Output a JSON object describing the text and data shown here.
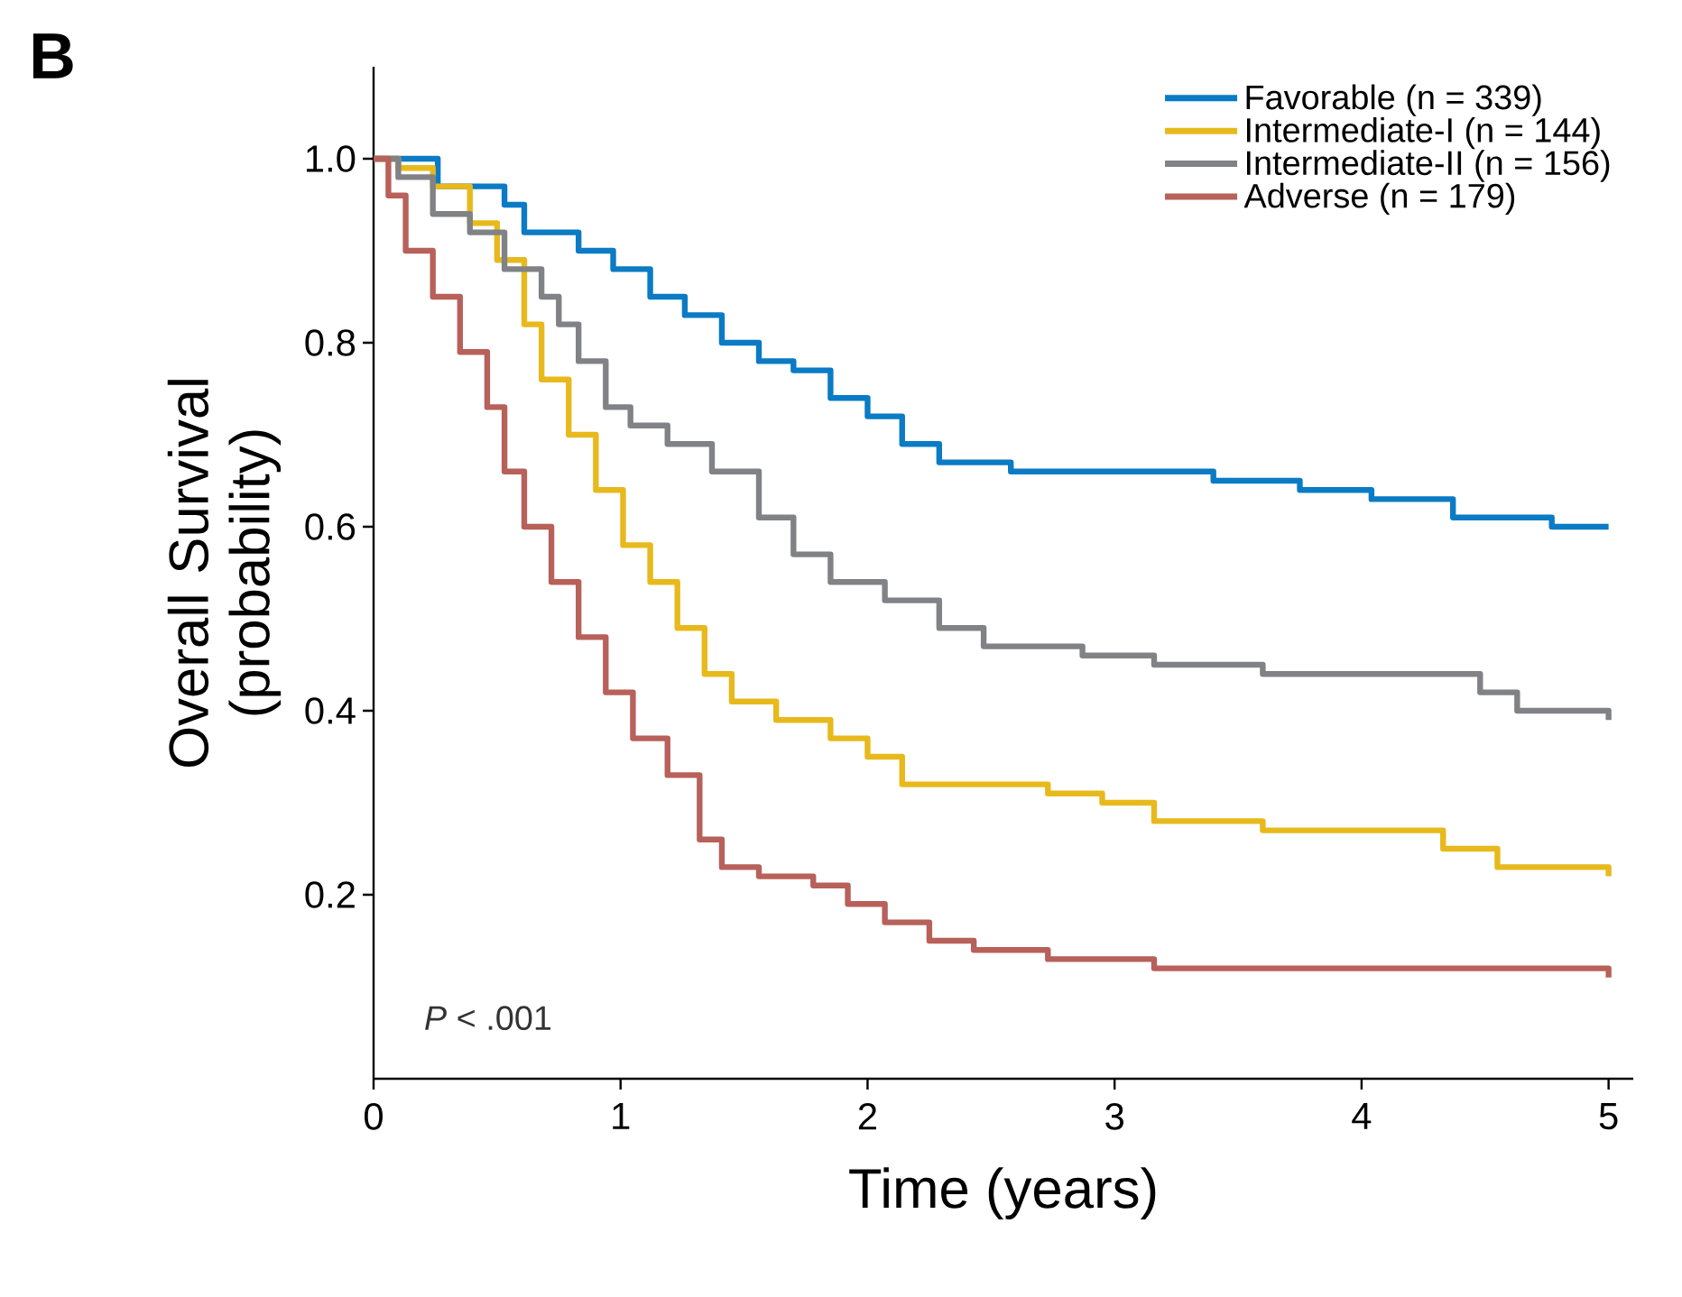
{
  "chart_data": {
    "type": "step",
    "title": "B",
    "xlabel": "Time (years)",
    "ylabel": "Overall Survival (probability)",
    "annotations": [
      "*P* < .001"
    ],
    "xlim": [
      0,
      5.1
    ],
    "ylim": [
      0,
      1.1
    ],
    "xticks": [
      0,
      1,
      2,
      3,
      4,
      5
    ],
    "yticks": [
      {
        "value": 0.2,
        "label": "0.2"
      },
      {
        "value": 0.4,
        "label": "0.4"
      },
      {
        "value": 0.6,
        "label": "0.6"
      },
      {
        "value": 0.8,
        "label": "0.8"
      },
      {
        "value": 1,
        "label": "1.0"
      }
    ],
    "legend": "top right",
    "grid": false,
    "marker": "none",
    "line_style": "solid",
    "series": [
      {
        "name": "Favorable (n = 339)",
        "color": "#0a7bc4",
        "x": [
          0,
          0.13,
          0.26,
          0.53,
          0.61,
          0.83,
          0.97,
          1.12,
          1.26,
          1.41,
          1.56,
          1.7,
          1.85,
          2.0,
          2.14,
          2.29,
          2.43,
          2.58,
          2.73,
          3.35,
          3.4,
          3.75,
          4.04,
          4.37,
          4.77,
          5.0
        ],
        "values": [
          1.0,
          1.0,
          0.97,
          0.95,
          0.92,
          0.9,
          0.88,
          0.85,
          0.83,
          0.8,
          0.78,
          0.77,
          0.74,
          0.72,
          0.69,
          0.67,
          0.67,
          0.66,
          0.66,
          0.66,
          0.65,
          0.64,
          0.63,
          0.61,
          0.6,
          0.6
        ]
      },
      {
        "name": "Intermediate-I (n = 144)",
        "color": "#e8b91c",
        "x": [
          0,
          0.1,
          0.24,
          0.39,
          0.5,
          0.61,
          0.68,
          0.79,
          0.9,
          1.01,
          1.12,
          1.23,
          1.34,
          1.45,
          1.63,
          1.85,
          2.0,
          2.14,
          2.43,
          2.73,
          2.95,
          3.16,
          3.6,
          4.33,
          4.55,
          5.0
        ],
        "values": [
          1.0,
          0.99,
          0.97,
          0.93,
          0.89,
          0.82,
          0.76,
          0.7,
          0.64,
          0.58,
          0.54,
          0.49,
          0.44,
          0.41,
          0.39,
          0.37,
          0.35,
          0.32,
          0.32,
          0.31,
          0.3,
          0.28,
          0.27,
          0.25,
          0.23,
          0.22
        ]
      },
      {
        "name": "Intermediate-II (n = 156)",
        "color": "#808285",
        "x": [
          0,
          0.1,
          0.24,
          0.39,
          0.53,
          0.68,
          0.75,
          0.83,
          0.94,
          1.04,
          1.19,
          1.37,
          1.56,
          1.7,
          1.85,
          2.07,
          2.29,
          2.47,
          2.87,
          3.16,
          3.6,
          4.48,
          4.63,
          5.0
        ],
        "values": [
          1.0,
          0.98,
          0.94,
          0.92,
          0.88,
          0.85,
          0.82,
          0.78,
          0.73,
          0.71,
          0.69,
          0.66,
          0.61,
          0.57,
          0.54,
          0.52,
          0.49,
          0.47,
          0.46,
          0.45,
          0.44,
          0.42,
          0.4,
          0.39
        ]
      },
      {
        "name": "Adverse (n = 179)",
        "color": "#b8605a",
        "x": [
          0,
          0.06,
          0.13,
          0.24,
          0.35,
          0.46,
          0.53,
          0.61,
          0.72,
          0.83,
          0.94,
          1.05,
          1.19,
          1.32,
          1.41,
          1.56,
          1.78,
          1.92,
          2.07,
          2.25,
          2.43,
          2.73,
          3.16,
          4.77,
          5.0
        ],
        "values": [
          1.0,
          0.96,
          0.9,
          0.85,
          0.79,
          0.73,
          0.66,
          0.6,
          0.54,
          0.48,
          0.42,
          0.37,
          0.33,
          0.26,
          0.23,
          0.22,
          0.21,
          0.19,
          0.17,
          0.15,
          0.14,
          0.13,
          0.12,
          0.12,
          0.11
        ]
      }
    ]
  }
}
